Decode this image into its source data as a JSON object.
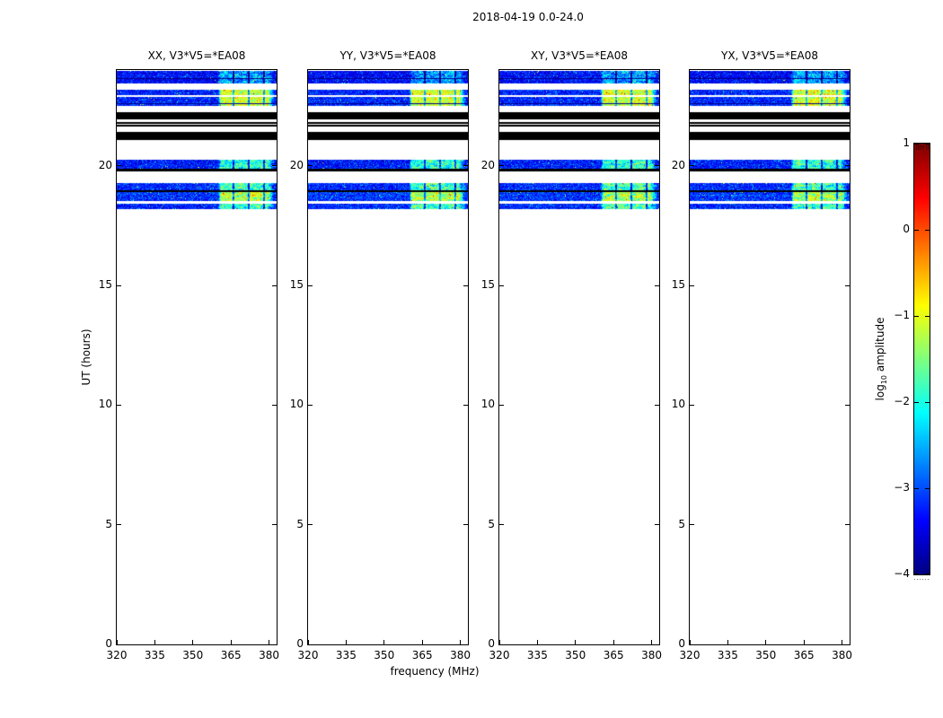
{
  "chart_data": {
    "type": "heatmap",
    "title": "2018-04-19 0.0-24.0",
    "xlabel": "frequency (MHz)",
    "ylabel": "UT (hours)",
    "x_range_mhz": [
      320,
      383
    ],
    "x_ticks": [
      320,
      335,
      350,
      365,
      380
    ],
    "y_range_hours": [
      0,
      24
    ],
    "y_ticks": [
      20,
      15,
      10,
      5,
      0
    ],
    "grid": false,
    "colormap": "jet",
    "panels": [
      {
        "id": "XX",
        "label": "XX, V3*V5=*EA08"
      },
      {
        "id": "YY",
        "label": "YY, V3*V5=*EA08"
      },
      {
        "id": "XY",
        "label": "XY, V3*V5=*EA08"
      },
      {
        "id": "YX",
        "label": "YX, V3*V5=*EA08"
      }
    ],
    "colorbar": {
      "label_prefix": "log",
      "label_sub": "10",
      "label_suffix": " amplitude",
      "range": [
        -4,
        1
      ],
      "ticks": [
        {
          "value": 1,
          "label": "1"
        },
        {
          "value": 0,
          "label": "0"
        },
        {
          "value": -1,
          "label": "−1"
        },
        {
          "value": -2,
          "label": "−2"
        },
        {
          "value": -3,
          "label": "−3"
        },
        {
          "value": -4,
          "label": "−4"
        }
      ]
    },
    "bright_patch": {
      "freq_start": 360,
      "freq_end": 379.5,
      "fade_end": 382,
      "separators_mhz": [
        366,
        372,
        378
      ],
      "separator_halfwidth_mhz": 0.45
    },
    "bands": [
      {
        "ut_start": 23.42,
        "ut_end": 23.97,
        "kind": "noise",
        "base": -3.35,
        "sigma": 0.3,
        "patch_level": -2.6,
        "blotch": 0.7
      },
      {
        "ut_start": 23.62,
        "ut_end": 23.68,
        "kind": "dark"
      },
      {
        "ut_start": 22.5,
        "ut_end": 23.16,
        "kind": "noise",
        "base": -3.2,
        "sigma": 0.3,
        "patch_level": -1.1,
        "blotch": 0.5
      },
      {
        "ut_start": 22.89,
        "ut_end": 22.96,
        "kind": "white"
      },
      {
        "ut_start": 22.56,
        "ut_end": 22.62,
        "kind": "dark"
      },
      {
        "ut_start": 21.93,
        "ut_end": 22.24,
        "kind": "black"
      },
      {
        "ut_start": 21.74,
        "ut_end": 21.84,
        "kind": "black"
      },
      {
        "ut_start": 21.65,
        "ut_end": 21.7,
        "kind": "black"
      },
      {
        "ut_start": 21.09,
        "ut_end": 21.42,
        "kind": "black"
      },
      {
        "ut_start": 19.86,
        "ut_end": 20.26,
        "kind": "noise",
        "base": -3.25,
        "sigma": 0.3,
        "patch_level": -1.95,
        "blotch": 0.9
      },
      {
        "ut_start": 19.78,
        "ut_end": 19.86,
        "kind": "black"
      },
      {
        "ut_start": 18.96,
        "ut_end": 19.26,
        "kind": "noise",
        "base": -3.2,
        "sigma": 0.3,
        "patch_level": -1.8,
        "blotch": 0.9
      },
      {
        "ut_start": 18.89,
        "ut_end": 18.96,
        "kind": "black"
      },
      {
        "ut_start": 18.51,
        "ut_end": 18.89,
        "kind": "noise",
        "base": -3.1,
        "sigma": 0.3,
        "patch_level": -1.3,
        "blotch": 0.8
      },
      {
        "ut_start": 18.43,
        "ut_end": 18.51,
        "kind": "white"
      },
      {
        "ut_start": 18.18,
        "ut_end": 18.43,
        "kind": "noise",
        "base": -3.2,
        "sigma": 0.3,
        "patch_level": -1.85,
        "blotch": 0.9
      }
    ]
  }
}
